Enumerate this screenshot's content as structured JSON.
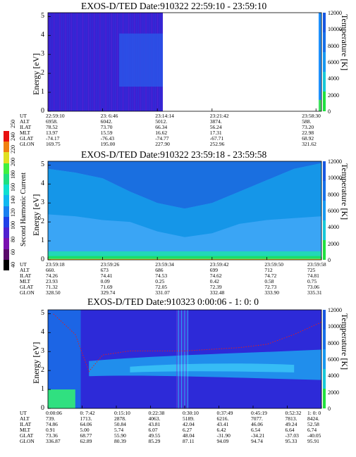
{
  "panels": [
    {
      "title": "EXOS-D/TED  Date:910322  22:59:10 - 23:59:10",
      "ylabel": "Energy [eV]",
      "y2label": "Temperature [K]",
      "yticks": [
        "0",
        "1",
        "2",
        "3",
        "4",
        "5"
      ],
      "y2ticks": [
        "0",
        "2000",
        "4000",
        "6000",
        "8000",
        "10000",
        "12000"
      ],
      "orbit": {
        "row_labels": [
          "UT",
          "ALT",
          "ILAT",
          "MLT",
          "GLAT",
          "GLON"
        ],
        "columns": [
          {
            "values": [
              "22:59:10",
              "6958.",
              "78.52",
              "13.97",
              "-74.17",
              "169.75"
            ]
          },
          {
            "values": [
              "23: 6:46",
              "6042.",
              "73.70",
              "15.59",
              "-76.43",
              "195.00"
            ]
          },
          {
            "values": [
              "23:14:14",
              "5012.",
              "66.34",
              "16.62",
              "-74.77",
              "227.90"
            ]
          },
          {
            "values": [
              "23:21:42",
              "3874.",
              "56.24",
              "17.31",
              "-67.71",
              "252.96"
            ]
          },
          {
            "values": [
              "23:58:30",
              "588.",
              "73.20",
              "22.98",
              "68.92",
              "321.62"
            ]
          }
        ]
      }
    },
    {
      "title": "EXOS-D/TED  Date:910322  23:59:18 - 23:59:58",
      "ylabel": "Energy [eV]",
      "y2label": "Temperature [K]",
      "cbar_label": "Second Harmonic Current",
      "yticks": [
        "0",
        "1",
        "2",
        "3",
        "4",
        "5"
      ],
      "y2ticks": [
        "0",
        "2000",
        "4000",
        "6000",
        "8000",
        "10000",
        "12000"
      ],
      "cbar_ticks": [
        "40",
        "60",
        "80",
        "100",
        "120",
        "140",
        "160",
        "180",
        "200",
        "220",
        "240",
        "250"
      ],
      "orbit": {
        "row_labels": [
          "UT",
          "ALT",
          "ILAT",
          "MLT",
          "GLAT",
          "GLON"
        ],
        "columns": [
          {
            "values": [
              "23:59:18",
              "660.",
              "74.26",
              "23.93",
              "71.32",
              "328.50"
            ]
          },
          {
            "values": [
              "23:59:26",
              "673",
              "74.41",
              "0.09",
              "71.69",
              "329.74"
            ]
          },
          {
            "values": [
              "23:59:34",
              "686",
              "74.53",
              "0.25",
              "72.05",
              "331.07"
            ]
          },
          {
            "values": [
              "23:59:42",
              "699",
              "74.62",
              "0.42",
              "72.39",
              "332.48"
            ]
          },
          {
            "values": [
              "23:59:50",
              "712",
              "74.72",
              "0.58",
              "72.73",
              "333.90"
            ]
          },
          {
            "values": [
              "23:59:58",
              "725",
              "74.81",
              "0.75",
              "73.06",
              "335.31"
            ]
          }
        ]
      }
    },
    {
      "title": "EXOS-D/TED  Date:910323  0:00:06 - 1: 0: 0",
      "ylabel": "Energy [eV]",
      "y2label": "Temperature [K]",
      "yticks": [
        "0",
        "1",
        "2",
        "3",
        "4",
        "5"
      ],
      "y2ticks": [
        "0",
        "2000",
        "4000",
        "6000",
        "8000",
        "10000",
        "12000"
      ],
      "orbit": {
        "row_labels": [
          "UT",
          "ALT",
          "ILAT",
          "MLT",
          "GLAT",
          "GLON"
        ],
        "columns": [
          {
            "values": [
              "0:00:06",
              "739.",
              "74.86",
              "0.91",
              "73.36",
              "336.87"
            ]
          },
          {
            "values": [
              "0: 7:42",
              "1713.",
              "64.06",
              "5.00",
              "68.77",
              "62.89"
            ]
          },
          {
            "values": [
              "0:15:10",
              "2878.",
              "50.84",
              "5.74",
              "55.90",
              "80.39"
            ]
          },
          {
            "values": [
              "0:22:38",
              "4063.",
              "43.81",
              "6.07",
              "49.55",
              "85.29"
            ]
          },
          {
            "values": [
              "0:30:10",
              "5189.",
              "42.04",
              "6.27",
              "48.04",
              "87.11"
            ]
          },
          {
            "values": [
              "0:37:49",
              "6216.",
              "43.41",
              "6.42",
              "-31.90",
              "94.09"
            ]
          },
          {
            "values": [
              "0:45:19",
              "7077.",
              "46.06",
              "6.54",
              "-34.21",
              "94.74"
            ]
          },
          {
            "values": [
              "0:52:32",
              "7813.",
              "49.24",
              "6.64",
              "-37.03",
              "95.33"
            ]
          },
          {
            "values": [
              "1: 0: 0",
              "8424.",
              "52.58",
              "6.74",
              "-40.05",
              "95.91"
            ]
          }
        ]
      }
    }
  ],
  "chart_data": [
    {
      "type": "heatmap",
      "title": "EXOS-D/TED  Date:910322  22:59:10 - 23:59:10",
      "ylabel": "Energy [eV]",
      "y2label": "Temperature [K]",
      "ylim": [
        0,
        5.2
      ],
      "y2lim": [
        0,
        12000
      ],
      "x_start": "22:59:10",
      "x_end": "23:58:30",
      "data_coverage_fraction": 0.42,
      "dominant_level": 130,
      "colors": {
        "dominant": "#3a1fd0",
        "background": "#ffffff",
        "right_band": "#1e90ff"
      }
    },
    {
      "type": "heatmap",
      "title": "EXOS-D/TED  Date:910322  23:59:18 - 23:59:58",
      "ylabel": "Energy [eV]",
      "y2label": "Temperature [K]",
      "ylim": [
        0,
        5.2
      ],
      "y2lim": [
        0,
        12000
      ],
      "x_start": "23:59:18",
      "x_end": "23:59:58",
      "colorscale_label": "Second Harmonic Current",
      "colorscale_range": [
        40,
        250
      ],
      "contour_levels": [
        {
          "level": 90,
          "color": "#1a6fe0",
          "min_energy": [
            4.8,
            4.6,
            4.3,
            3.6,
            3.0,
            2.7,
            3.0,
            3.6,
            4.2,
            4.8,
            5.1
          ]
        },
        {
          "level": 110,
          "color": "#0da2f0",
          "min_energy": [
            2.4,
            2.3,
            2.1,
            2.0,
            1.5,
            1.2,
            1.4,
            1.9,
            2.1,
            2.2,
            2.3
          ]
        },
        {
          "level": 200,
          "color": "#1ae06a",
          "min_energy": [
            0.2,
            0.2,
            0.2,
            0.2,
            0.2,
            0.2,
            0.2,
            0.2,
            0.2,
            0.2,
            0.2
          ]
        }
      ],
      "x_fractions": [
        0,
        0.1,
        0.2,
        0.3,
        0.4,
        0.5,
        0.6,
        0.7,
        0.8,
        0.9,
        1.0
      ]
    },
    {
      "type": "heatmap",
      "title": "EXOS-D/TED  Date:910323  0:00:06 - 1: 0: 0",
      "ylabel": "Energy [eV]",
      "y2label": "Temperature [K]",
      "ylim": [
        0,
        5.2
      ],
      "y2lim": [
        0,
        12000
      ],
      "x_start": "0:00:06",
      "x_end": "1: 0: 0",
      "temperature_trace": {
        "x_fraction": [
          0.02,
          0.1,
          0.15,
          0.2,
          0.3,
          0.4,
          0.5,
          0.6,
          0.7,
          0.8,
          0.9,
          1.0
        ],
        "temperature": [
          11500,
          9000,
          4500,
          6500,
          7000,
          7000,
          7000,
          7200,
          7400,
          7800,
          9000,
          10500
        ]
      }
    }
  ]
}
